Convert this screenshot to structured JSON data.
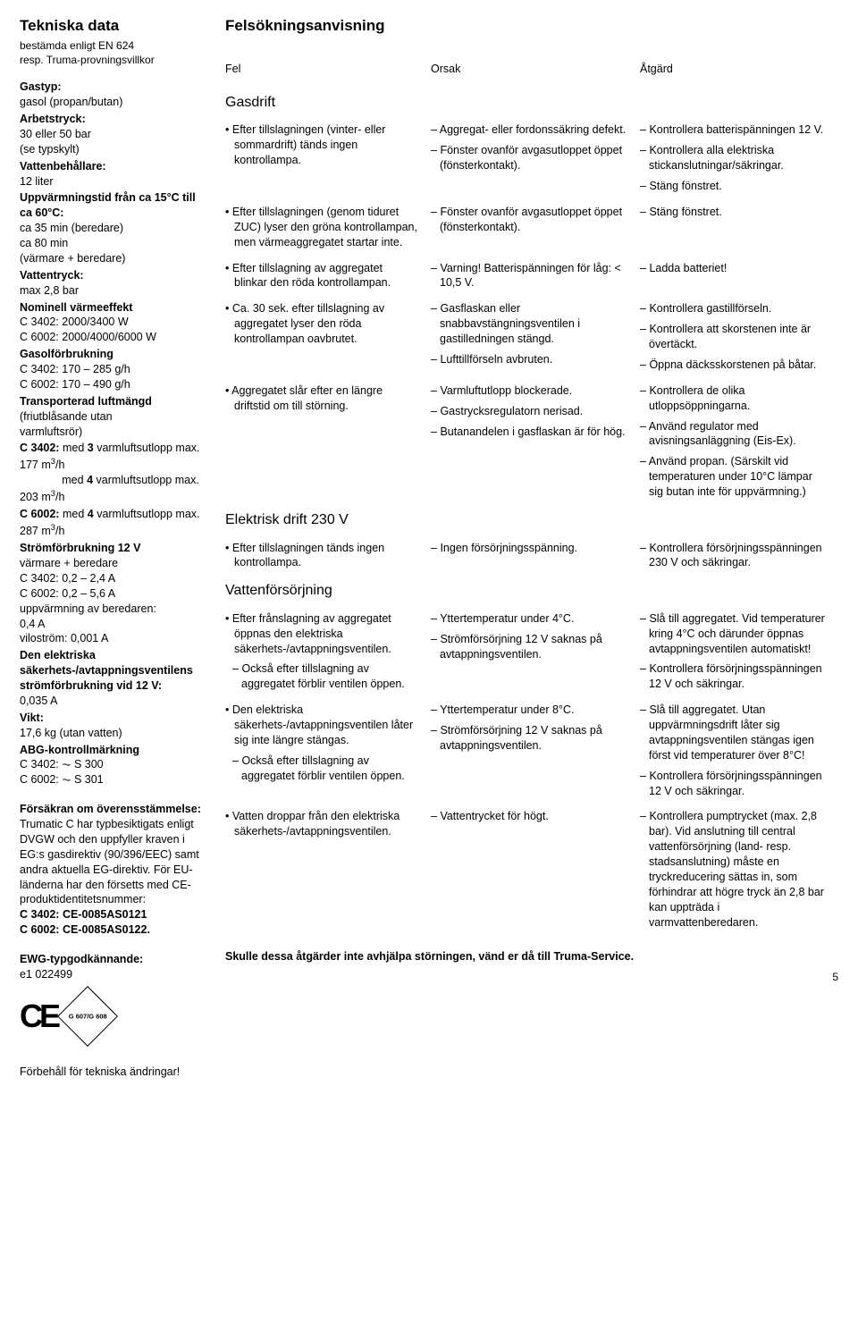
{
  "left": {
    "title": "Tekniska data",
    "sub1": "bestämda enligt EN 624",
    "sub2": "resp. Truma-provningsvillkor",
    "specs": [
      {
        "label": "Gastyp:",
        "lines": [
          "gasol (propan/butan)"
        ]
      },
      {
        "label": "Arbetstryck:",
        "lines": [
          "30 eller 50 bar",
          "(se typskylt)"
        ]
      },
      {
        "label": "Vattenbehållare:",
        "lines": [
          "12 liter"
        ]
      },
      {
        "label": "Uppvärmningstid från ca 15°C till ca 60°C:",
        "lines": [
          "ca 35 min (beredare)",
          "ca 80 min",
          "(värmare + beredare)"
        ]
      },
      {
        "label": "Vattentryck:",
        "lines": [
          "max 2,8 bar"
        ]
      },
      {
        "label": "Nominell värmeeffekt",
        "lines": [
          "C 3402: 2000/3400 W",
          "C 6002: 2000/4000/6000 W"
        ]
      },
      {
        "label": "Gasolförbrukning",
        "lines": [
          "C 3402: 170 – 285 g/h",
          "C 6002: 170 – 490 g/h"
        ]
      },
      {
        "label": "Transporterad luftmängd",
        "lines": [
          "(friutblåsande utan",
          "varmluftsrör)"
        ]
      }
    ],
    "c3402": {
      "label": "C 3402:",
      "a": "med 3 varmluftsutlopp max. 177 m",
      "sup": "3",
      "b": "/h",
      "a2": "med 4 varmluftsutlopp max. 203 m",
      "b2": "/h"
    },
    "c6002": {
      "label": "C 6002:",
      "a": "med 4 varmluftsutlopp max. 287 m",
      "sup": "3",
      "b": "/h"
    },
    "more": [
      {
        "label": "Strömförbrukning 12 V",
        "lines": [
          "värmare + beredare",
          "C 3402: 0,2 – 2,4 A",
          "C 6002: 0,2 – 5,6 A",
          "uppvärmning av beredaren:",
          "0,4 A",
          "viloström: 0,001 A"
        ]
      },
      {
        "label": "Den elektriska säkerhets-/avtappningsventilens strömförbrukning vid 12 V:",
        "lines": [
          "0,035 A"
        ]
      },
      {
        "label": "Vikt:",
        "lines": [
          "17,6 kg (utan vatten)"
        ]
      },
      {
        "label": "ABG-kontrollmärkning",
        "lines": [
          "C 3402: ⏦ S 300",
          "C 6002: ⏦ S 301"
        ]
      }
    ],
    "conf_label": "Försäkran om överensstämmelse:",
    "conf_body": "Trumatic C har typbesiktigats enligt DVGW och den uppfyller kraven i EG:s gasdirektiv (90/396/EEC) samt andra aktuella EG-direktiv. För EU-länderna har den försetts med CE-produktidentitetsnummer:",
    "conf_l1": "C 3402: CE-0085AS0121",
    "conf_l2": "C 6002: CE-0085AS0122.",
    "ewg_label": "EWG-typgodkännande:",
    "ewg_val": "e1 022499",
    "badge": "G 607/G 608",
    "reserve": "Förbehåll för tekniska ändringar!"
  },
  "right": {
    "title": "Felsökningsanvisning",
    "head": {
      "fel": "Fel",
      "orsak": "Orsak",
      "atgard": "Åtgärd"
    },
    "s1": "Gasdrift",
    "rows1": [
      {
        "c1": "Efter tillslagningen (vinter- eller sommardrift) tänds ingen kontrollampa.",
        "c2": [
          "Aggregat- eller fordonssäkring defekt.",
          "Fönster ovanför avgasutloppet öppet (fönsterkontakt)."
        ],
        "c3": [
          "Kontrollera batterispänningen 12 V.",
          "Kontrollera alla elektriska stickanslutningar/säkringar.",
          "Stäng fönstret."
        ]
      },
      {
        "c1": "Efter tillslagningen (genom tiduret ZUC) lyser den gröna kontrollampan, men värmeaggregatet startar inte.",
        "c2": [
          "Fönster ovanför avgasutloppet öppet (fönsterkontakt)."
        ],
        "c3": [
          "Stäng fönstret."
        ]
      },
      {
        "c1": "Efter tillslagning av aggregatet blinkar den röda kontrollampan.",
        "c2": [
          "Varning! Batterispänningen för låg: < 10,5 V."
        ],
        "c3": [
          "Ladda batteriet!"
        ]
      },
      {
        "c1": "Ca. 30 sek. efter tillslagning av aggregatet lyser den röda kontrollampan oavbrutet.",
        "c2": [
          "Gasflaskan eller snabbavstängningsventilen i gastilledningen stängd.",
          "Lufttillförseln avbruten."
        ],
        "c3": [
          "Kontrollera gastillförseln.",
          "Kontrollera att skorstenen inte är övertäckt.",
          "Öppna däcksskorstenen på båtar."
        ]
      },
      {
        "c1": "Aggregatet slår efter en längre driftstid om till störning.",
        "c2": [
          "Varmluftutlopp blockerade.",
          "Gastrycksregulatorn nerisad.",
          "Butanandelen i gasflaskan är för hög."
        ],
        "c3": [
          "Kontrollera de olika utloppsöppningarna.",
          "Använd regulator med avisningsanläggning (Eis-Ex).",
          "Använd propan. (Särskilt vid temperaturen under 10°C lämpar sig butan inte för uppvärmning.)"
        ]
      }
    ],
    "s2": "Elektrisk drift 230 V",
    "rows2": [
      {
        "c1": "Efter tillslagningen tänds ingen kontrollampa.",
        "c2": [
          "Ingen försörjningsspänning."
        ],
        "c3": [
          "Kontrollera försörjningsspänningen 230 V och säkringar."
        ]
      }
    ],
    "s3": "Vattenförsörjning",
    "rows3": [
      {
        "c1": "Efter frånslagning av aggregatet öppnas den elektriska säkerhets-/avtappningsventilen.",
        "c1b": "Också efter tillslagning av aggregatet förblir ventilen öppen.",
        "c2": [
          "Yttertemperatur under 4°C.",
          "Strömförsörjning 12 V saknas på avtappningsventilen."
        ],
        "c3": [
          "Slå till aggregatet. Vid temperaturer kring 4°C och därunder öppnas avtappningsventilen automatiskt!",
          "Kontrollera försörjningsspänningen 12 V och säkringar."
        ]
      },
      {
        "c1": "Den elektriska säkerhets-/avtappningsventilen låter sig inte längre stängas.",
        "c1b": "Också efter tillslagning av aggregatet förblir ventilen öppen.",
        "c2": [
          "Yttertemperatur under 8°C.",
          "Strömförsörjning 12 V saknas på avtappningsventilen."
        ],
        "c3": [
          "Slå till aggregatet. Utan uppvärmningsdrift låter sig avtappningsventilen stängas igen först vid temperaturer över 8°C!",
          "Kontrollera försörjningsspänningen 12 V och säkringar."
        ]
      },
      {
        "c1": "Vatten droppar från den elektriska säkerhets-/avtappningsventilen.",
        "c2": [
          "Vattentrycket för högt."
        ],
        "c3": [
          "Kontrollera pumptrycket (max. 2,8 bar). Vid anslutning till central vattenförsörjning (land- resp. stadsanslutning) måste en tryckreducering sättas in, som förhindrar att högre tryck än 2,8 bar kan uppträda i varmvattenberedaren."
        ]
      }
    ],
    "footL": "Skulle dessa åtgärder inte avhjälpa störningen, vänd er då till Truma-Service.",
    "pg": "5"
  }
}
